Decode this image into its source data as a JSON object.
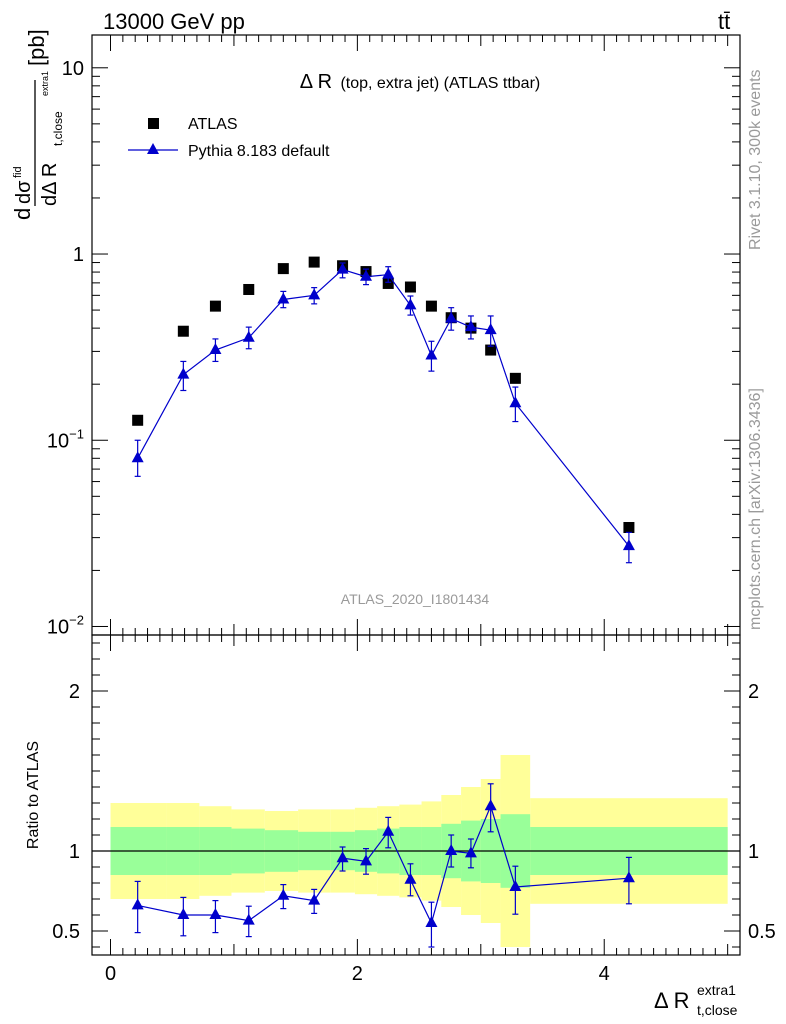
{
  "header": {
    "left": "13000 GeV pp",
    "right": "tt̄"
  },
  "side": {
    "rivet": "Rivet 3.1.10,  300k events",
    "mcplots": "mcplots.cern.ch [arXiv:1306.3436]"
  },
  "chart_data": {
    "type": "scatter",
    "title_main": "Δ R",
    "title_detail": "(top, extra jet) (ATLAS ttbar)",
    "analysis_label": "ATLAS_2020_I1801434",
    "ylabel": {
      "prefix": "d",
      "numerator": "dσ",
      "numerator_sup": "fid",
      "denominator": "dΔ R",
      "denominator_sub": "t,close",
      "denominator_supsub": "extra1",
      "unit": "[pb]"
    },
    "xlabel": {
      "main": "Δ R",
      "sup": "extra1",
      "sub": "t,close"
    },
    "ratio_ylabel": "Ratio to ATLAS",
    "legend": [
      {
        "name": "ATLAS",
        "marker": "square",
        "color": "#000000"
      },
      {
        "name": "Pythia 8.183 default",
        "marker": "triangle",
        "color": "#0000cc"
      }
    ],
    "xlim": [
      -0.15,
      5.1
    ],
    "ylim": [
      0.009,
      15
    ],
    "yscale": "log",
    "ratio_ylim": [
      0.35,
      2.35
    ],
    "x_ticks": [
      "0",
      "2",
      "4"
    ],
    "y_ticks": [
      {
        "value": 10,
        "mant": "10",
        "exp": ""
      },
      {
        "value": 1,
        "mant": "1",
        "exp": ""
      },
      {
        "value": 0.1,
        "mant": "10",
        "exp": "−1"
      },
      {
        "value": 0.01,
        "mant": "10",
        "exp": "−2"
      }
    ],
    "ratio_ticks": [
      {
        "value": 2,
        "label": "2"
      },
      {
        "value": 1,
        "label": "1"
      },
      {
        "value": 0.5,
        "label": "0.5"
      }
    ],
    "bins": [
      [
        0.0,
        0.45
      ],
      [
        0.45,
        0.72
      ],
      [
        0.72,
        0.98
      ],
      [
        0.98,
        1.25
      ],
      [
        1.25,
        1.52
      ],
      [
        1.52,
        1.78
      ],
      [
        1.78,
        1.98
      ],
      [
        1.98,
        2.16
      ],
      [
        2.16,
        2.34
      ],
      [
        2.34,
        2.52
      ],
      [
        2.52,
        2.68
      ],
      [
        2.68,
        2.84
      ],
      [
        2.84,
        3.0
      ],
      [
        3.0,
        3.16
      ],
      [
        3.16,
        3.4
      ],
      [
        3.4,
        5.0
      ]
    ],
    "atlas": {
      "x": [
        0.22,
        0.59,
        0.85,
        1.12,
        1.4,
        1.65,
        1.88,
        2.07,
        2.25,
        2.43,
        2.6,
        2.76,
        2.92,
        3.08,
        3.28,
        4.2
      ],
      "y": [
        0.128,
        0.385,
        0.525,
        0.645,
        0.835,
        0.905,
        0.865,
        0.805,
        0.695,
        0.665,
        0.525,
        0.455,
        0.4,
        0.305,
        0.215,
        0.034
      ],
      "err_inner": [
        0.15,
        0.15,
        0.15,
        0.14,
        0.13,
        0.12,
        0.12,
        0.13,
        0.14,
        0.15,
        0.15,
        0.17,
        0.19,
        0.2,
        0.23,
        0.15
      ],
      "err_outer": [
        0.3,
        0.3,
        0.28,
        0.26,
        0.25,
        0.26,
        0.26,
        0.27,
        0.28,
        0.29,
        0.31,
        0.35,
        0.4,
        0.45,
        0.6,
        0.33
      ]
    },
    "pythia": {
      "x": [
        0.22,
        0.59,
        0.85,
        1.12,
        1.4,
        1.65,
        1.88,
        2.07,
        2.25,
        2.43,
        2.6,
        2.76,
        2.92,
        3.08,
        3.28,
        4.2
      ],
      "y": [
        0.08,
        0.225,
        0.305,
        0.355,
        0.57,
        0.6,
        0.825,
        0.755,
        0.775,
        0.53,
        0.285,
        0.45,
        0.405,
        0.39,
        0.158,
        0.027
      ],
      "err_lo": [
        0.016,
        0.04,
        0.04,
        0.045,
        0.055,
        0.06,
        0.08,
        0.07,
        0.07,
        0.06,
        0.05,
        0.06,
        0.055,
        0.07,
        0.032,
        0.005
      ],
      "err_hi": [
        0.02,
        0.04,
        0.045,
        0.05,
        0.06,
        0.06,
        0.07,
        0.075,
        0.08,
        0.065,
        0.055,
        0.065,
        0.06,
        0.075,
        0.035,
        0.005
      ],
      "ratio": [
        0.66,
        0.6,
        0.6,
        0.565,
        0.72,
        0.69,
        0.955,
        0.935,
        1.12,
        0.82,
        0.55,
        1.0,
        0.985,
        1.28,
        0.775,
        0.83
      ],
      "ratio_lo": [
        0.17,
        0.13,
        0.11,
        0.1,
        0.08,
        0.08,
        0.08,
        0.08,
        0.1,
        0.1,
        0.15,
        0.1,
        0.09,
        0.16,
        0.17,
        0.16
      ],
      "ratio_hi": [
        0.15,
        0.11,
        0.09,
        0.09,
        0.07,
        0.07,
        0.07,
        0.08,
        0.09,
        0.1,
        0.13,
        0.1,
        0.09,
        0.14,
        0.13,
        0.13
      ]
    }
  }
}
